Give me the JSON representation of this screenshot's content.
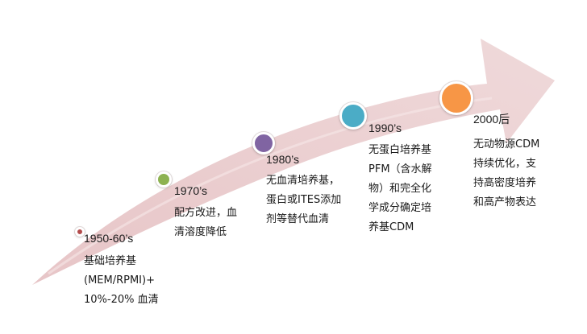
{
  "colors": {
    "arrow_fill": "#ecd3d4",
    "arrow_highlight": "#f6e8e8",
    "milestone_1": "#b24b4b",
    "milestone_2": "#8db251",
    "milestone_3": "#8064a2",
    "milestone_4": "#4bacc6",
    "milestone_5": "#f79646"
  },
  "milestones": [
    {
      "era": "1950-60’s",
      "lines": [
        "基础培养基",
        "(MEM/RPMI)+",
        "10%-20% 血清"
      ]
    },
    {
      "era": "1970’s",
      "lines": [
        "配方改进，血",
        "清溶度降低"
      ]
    },
    {
      "era": "1980’s",
      "lines": [
        "无血清培养基，",
        "蛋白或ITES添加",
        "剂等替代血清"
      ]
    },
    {
      "era": "1990’s",
      "lines": [
        "无蛋白培养基",
        "PFM（含水解",
        "物）和完全化",
        "学成分确定培",
        "养基CDM"
      ]
    },
    {
      "era": "2000后",
      "lines": [
        "无动物源CDM",
        "持续优化，支",
        "持高密度培养",
        "和高产物表达"
      ]
    }
  ]
}
